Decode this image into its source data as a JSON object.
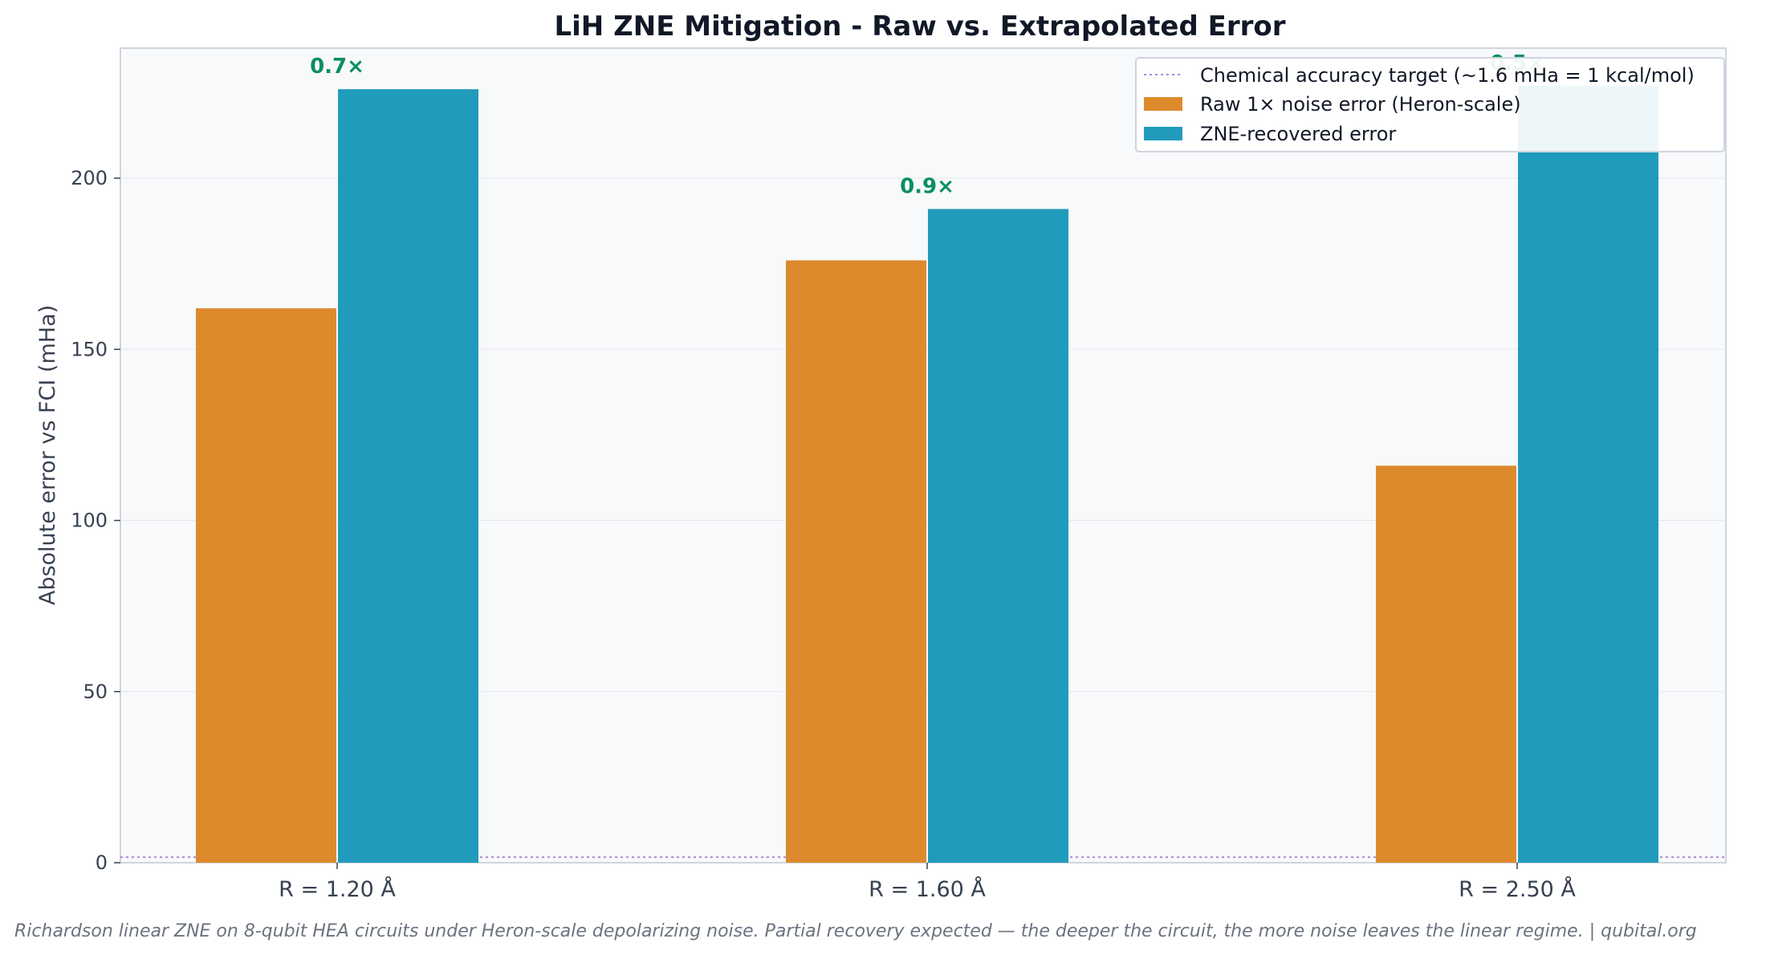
{
  "chart_data": {
    "type": "bar",
    "title": "LiH ZNE Mitigation - Raw vs. Extrapolated Error",
    "xlabel": "",
    "ylabel": "Absolute error vs FCI (mHa)",
    "categories": [
      "R = 1.20 Å",
      "R = 1.60 Å",
      "R = 2.50 Å"
    ],
    "series": [
      {
        "name": "Raw 1× noise error (Heron-scale)",
        "color": "#dd8a2c",
        "values": [
          162,
          176,
          116
        ]
      },
      {
        "name": "ZNE-recovered error",
        "color": "#219bbb",
        "values": [
          226,
          191,
          227
        ]
      }
    ],
    "ratio_labels": [
      "0.7×",
      "0.9×",
      "0.5×"
    ],
    "ratio_color": "#0b8f5f",
    "reference_line": {
      "name": "Chemical accuracy target (~1.6 mHa = 1 kcal/mol)",
      "value": 1.6,
      "color": "#a78bdb"
    },
    "ylim": [
      0,
      238
    ],
    "yticks": [
      0,
      50,
      100,
      150,
      200
    ],
    "grid": true,
    "legend_position": "top-right"
  },
  "footer": {
    "caption": "Richardson linear ZNE on 8-qubit HEA circuits under Heron-scale depolarizing noise.  Partial recovery expected — the deeper the circuit, the more noise leaves the linear regime.  |  qubital.org"
  }
}
